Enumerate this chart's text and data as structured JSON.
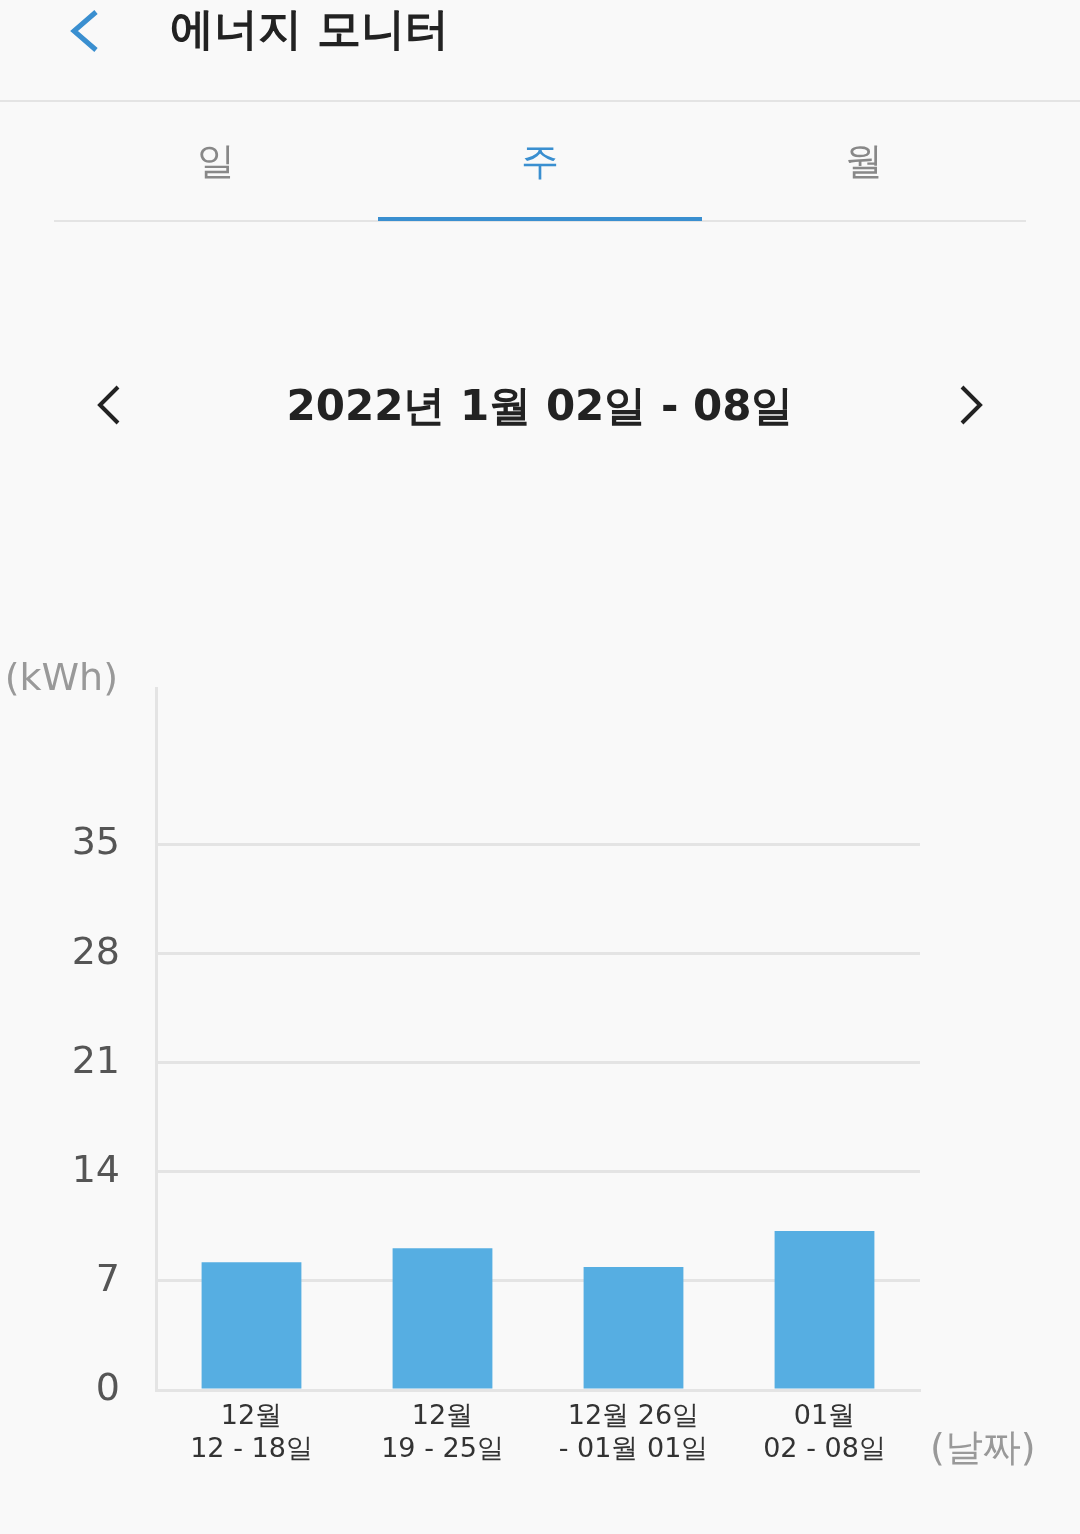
{
  "chart_data": {
    "type": "bar",
    "title": "에너지 모니터",
    "subtitle": "2022년 1월 02일 - 08일",
    "annotations": [
      "일",
      "주",
      "월"
    ],
    "ylabel": "(kWh)",
    "xlabel": "(날짜)",
    "categories": [
      "12월\n12 - 18일",
      "12월\n19 - 25일",
      "12월 26일\n- 01월 01일",
      "01월\n02 - 08일"
    ],
    "values": [
      8.2,
      9.1,
      7.9,
      10.2
    ],
    "color": "#56aee2",
    "ylim": [
      0,
      45
    ],
    "yticks": [
      0,
      7,
      14,
      21,
      28,
      35
    ],
    "grid": "y",
    "legend": false
  }
}
